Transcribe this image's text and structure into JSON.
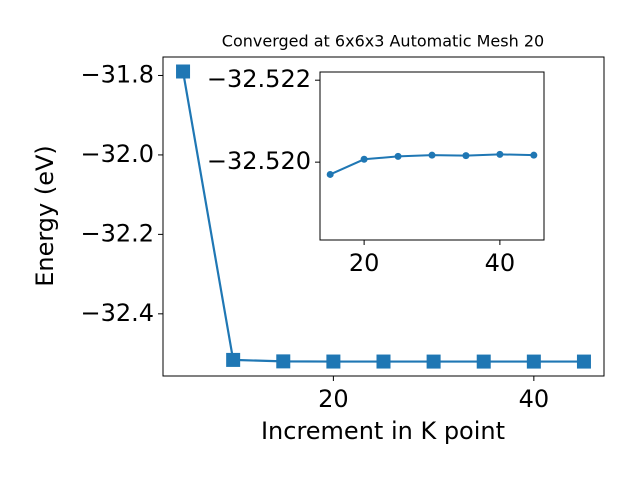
{
  "chart_data": [
    {
      "type": "line",
      "title": "Converged at 6x6x3 Automatic Mesh 20",
      "x_label": "Increment in K point",
      "y_label": "Energy (eV)",
      "x": [
        5,
        10,
        15,
        20,
        25,
        30,
        35,
        40,
        45
      ],
      "series": [
        {
          "color": "#1f77b4",
          "marker": "square",
          "values": [
            -31.79,
            -32.516,
            -32.5197,
            -32.5201,
            -32.5201,
            -32.5202,
            -32.5202,
            -32.5202,
            -32.5202
          ]
        }
      ],
      "xlim": [
        3,
        47
      ],
      "xticks": [
        20,
        40
      ],
      "ylim": [
        -32.5565,
        -31.7535
      ],
      "yticks": [
        {
          "value": -31.8,
          "label": "−31.8"
        },
        {
          "value": -32.0,
          "label": "−32.0"
        },
        {
          "value": -32.2,
          "label": "−32.2"
        },
        {
          "value": -32.4,
          "label": "−32.4"
        }
      ]
    },
    {
      "type": "line",
      "x": [
        15,
        20,
        25,
        30,
        35,
        40,
        45
      ],
      "series": [
        {
          "color": "#1f77b4",
          "marker": "circle",
          "values": [
            -32.5197,
            -32.52007,
            -32.52014,
            -32.52017,
            -32.52016,
            -32.52019,
            -32.52017
          ]
        }
      ],
      "xlim": [
        13.5,
        46.5
      ],
      "xticks": [
        20,
        40
      ],
      "ylim": [
        -32.5181,
        -32.5222
      ],
      "yticks": [
        {
          "value": -32.522,
          "label": "−32.522"
        },
        {
          "value": -32.52,
          "label": "−32.520"
        }
      ]
    }
  ]
}
